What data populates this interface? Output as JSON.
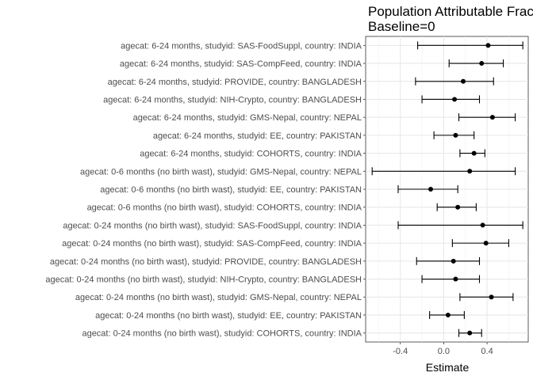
{
  "chart_data": {
    "type": "forest",
    "title_lines": [
      "Population Attributable Fraction",
      "Baseline=0"
    ],
    "xlabel": "Estimate",
    "ylabel": "",
    "xlim": [
      -0.72,
      0.78
    ],
    "xticks": [
      -0.4,
      0.0,
      0.4
    ],
    "xtick_labels": [
      "-0.4",
      "0.0",
      "0.4"
    ],
    "grid": true,
    "rows": [
      {
        "label": "agecat: 6-24 months, studyid: SAS-FoodSuppl, country: INDIA",
        "est": 0.41,
        "lo": -0.24,
        "hi": 0.73
      },
      {
        "label": "agecat: 6-24 months, studyid: SAS-CompFeed, country: INDIA",
        "est": 0.35,
        "lo": 0.05,
        "hi": 0.55
      },
      {
        "label": "agecat: 6-24 months, studyid: PROVIDE, country: BANGLADESH",
        "est": 0.18,
        "lo": -0.26,
        "hi": 0.46
      },
      {
        "label": "agecat: 6-24 months, studyid: NIH-Crypto, country: BANGLADESH",
        "est": 0.1,
        "lo": -0.2,
        "hi": 0.33
      },
      {
        "label": "agecat: 6-24 months, studyid: GMS-Nepal, country: NEPAL",
        "est": 0.45,
        "lo": 0.14,
        "hi": 0.66
      },
      {
        "label": "agecat: 6-24 months, studyid: EE, country: PAKISTAN",
        "est": 0.11,
        "lo": -0.09,
        "hi": 0.28
      },
      {
        "label": "agecat: 6-24 months, studyid: COHORTS, country: INDIA",
        "est": 0.28,
        "lo": 0.15,
        "hi": 0.38
      },
      {
        "label": "agecat: 0-6 months (no birth wast), studyid: GMS-Nepal, country: NEPAL",
        "est": 0.24,
        "lo": -0.66,
        "hi": 0.66
      },
      {
        "label": "agecat: 0-6 months (no birth wast), studyid: EE, country: PAKISTAN",
        "est": -0.12,
        "lo": -0.42,
        "hi": 0.13
      },
      {
        "label": "agecat: 0-6 months (no birth wast), studyid: COHORTS, country: INDIA",
        "est": 0.13,
        "lo": -0.06,
        "hi": 0.3
      },
      {
        "label": "agecat: 0-24 months (no birth wast), studyid: SAS-FoodSuppl, country: INDIA",
        "est": 0.36,
        "lo": -0.42,
        "hi": 0.73
      },
      {
        "label": "agecat: 0-24 months (no birth wast), studyid: SAS-CompFeed, country: INDIA",
        "est": 0.39,
        "lo": 0.08,
        "hi": 0.6
      },
      {
        "label": "agecat: 0-24 months (no birth wast), studyid: PROVIDE, country: BANGLADESH",
        "est": 0.09,
        "lo": -0.25,
        "hi": 0.33
      },
      {
        "label": "agecat: 0-24 months (no birth wast), studyid: NIH-Crypto, country: BANGLADESH",
        "est": 0.11,
        "lo": -0.2,
        "hi": 0.33
      },
      {
        "label": "agecat: 0-24 months (no birth wast), studyid: GMS-Nepal, country: NEPAL",
        "est": 0.44,
        "lo": 0.15,
        "hi": 0.64
      },
      {
        "label": "agecat: 0-24 months (no birth wast), studyid: EE, country: PAKISTAN",
        "est": 0.04,
        "lo": -0.13,
        "hi": 0.19
      },
      {
        "label": "agecat: 0-24 months (no birth wast), studyid: COHORTS, country: INDIA",
        "est": 0.24,
        "lo": 0.14,
        "hi": 0.35
      }
    ]
  }
}
